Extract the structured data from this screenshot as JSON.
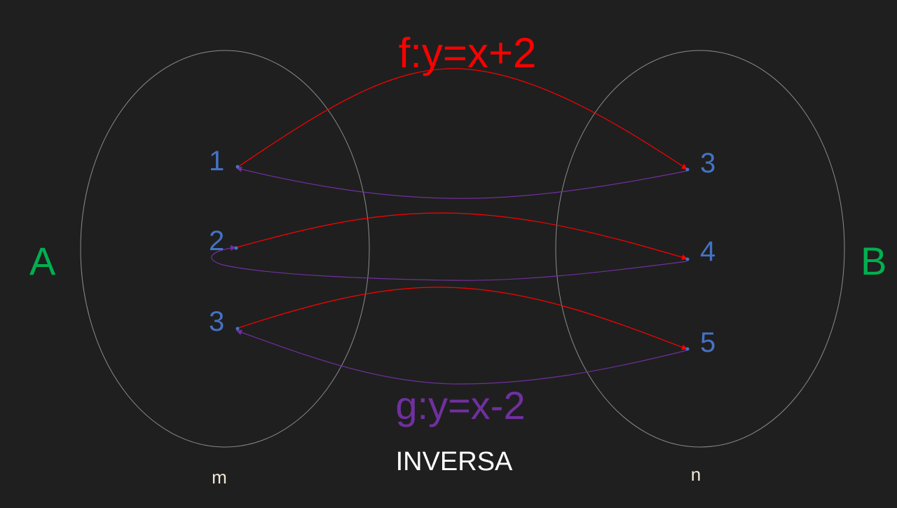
{
  "colors": {
    "background": "#1f1f1f",
    "set_outline": "#8c8c8c",
    "set_label": "#00b050",
    "element": "#4472c4",
    "f_color": "#ff0000",
    "g_color": "#7030a0",
    "caption": "#ffffff",
    "sub_caption": "#f2e6d8"
  },
  "set_a": {
    "label": "A",
    "caption": "m",
    "elements": [
      "1",
      "2",
      "3"
    ]
  },
  "set_b": {
    "label": "B",
    "caption": "n",
    "elements": [
      "3",
      "4",
      "5"
    ]
  },
  "f_label": "f:y=x+2",
  "g_label": "g:y=x-2",
  "title": "INVERSA"
}
